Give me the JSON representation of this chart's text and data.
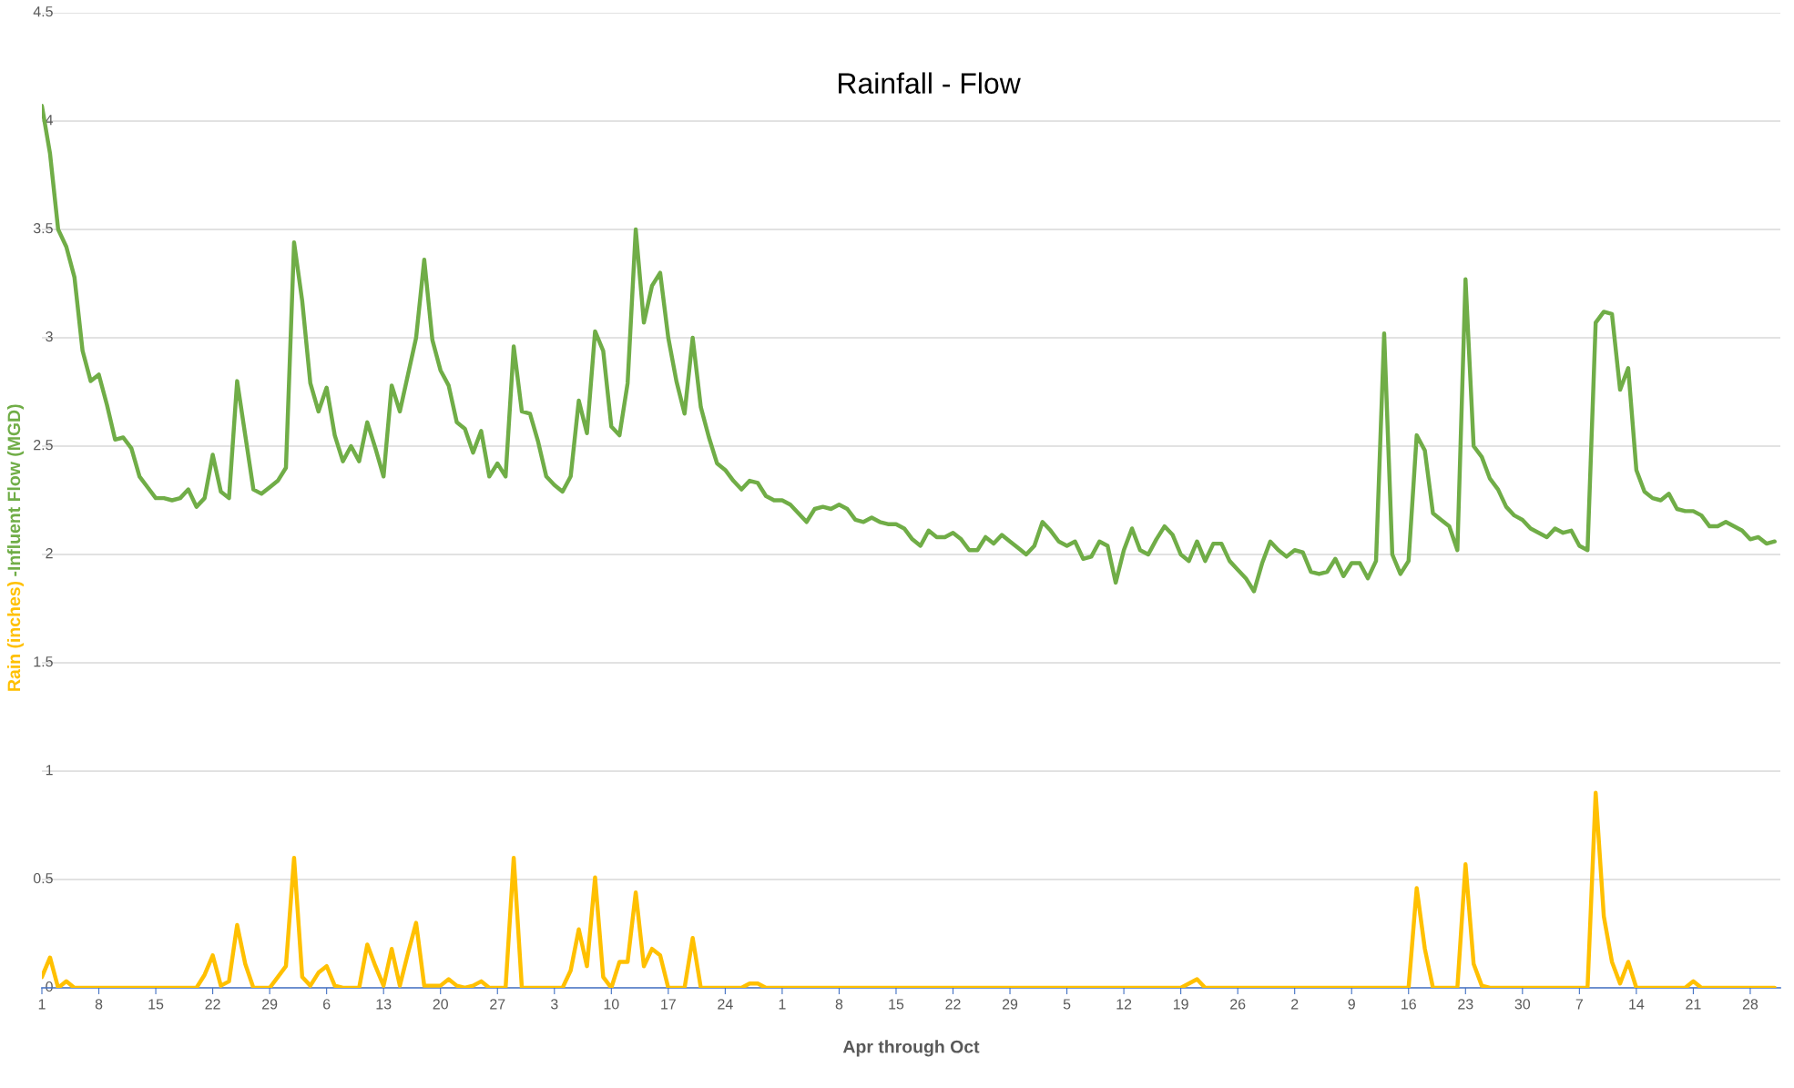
{
  "chart_data": {
    "type": "line",
    "title": "Rainfall - Flow",
    "xlabel": "Apr through Oct",
    "categories": [
      "1",
      null,
      null,
      null,
      null,
      null,
      null,
      "8",
      null,
      null,
      null,
      null,
      null,
      null,
      "15",
      null,
      null,
      null,
      null,
      null,
      null,
      "22",
      null,
      null,
      null,
      null,
      null,
      null,
      "29",
      null,
      null,
      null,
      null,
      null,
      null,
      "6",
      null,
      null,
      null,
      null,
      null,
      null,
      "13",
      null,
      null,
      null,
      null,
      null,
      null,
      "20",
      null,
      null,
      null,
      null,
      null,
      null,
      "27",
      null,
      null,
      null,
      null,
      null,
      null,
      "3",
      null,
      null,
      null,
      null,
      null,
      null,
      "10",
      null,
      null,
      null,
      null,
      null,
      null,
      "17",
      null,
      null,
      null,
      null,
      null,
      null,
      "24",
      null,
      null,
      null,
      null,
      null,
      null,
      "1",
      null,
      null,
      null,
      null,
      null,
      null,
      "8",
      null,
      null,
      null,
      null,
      null,
      null,
      "15",
      null,
      null,
      null,
      null,
      null,
      null,
      "22",
      null,
      null,
      null,
      null,
      null,
      null,
      "29",
      null,
      null,
      null,
      null,
      null,
      null,
      "5",
      null,
      null,
      null,
      null,
      null,
      null,
      "12",
      null,
      null,
      null,
      null,
      null,
      null,
      "19",
      null,
      null,
      null,
      null,
      null,
      null,
      "26",
      null,
      null,
      null,
      null,
      null,
      null,
      "2",
      null,
      null,
      null,
      null,
      null,
      null,
      "9",
      null,
      null,
      null,
      null,
      null,
      null,
      "16",
      null,
      null,
      null,
      null,
      null,
      null,
      "23",
      null,
      null,
      null,
      null,
      null,
      null,
      "30",
      null,
      null,
      null,
      null,
      null,
      null,
      "7",
      null,
      null,
      null,
      null,
      null,
      null,
      "14",
      null,
      null,
      null,
      null,
      null,
      null,
      "21",
      null,
      null,
      null,
      null,
      null,
      null,
      "28",
      null,
      null,
      null
    ],
    "series": [
      {
        "name": "Rain (inches)",
        "color": "#ffc000",
        "values": [
          0.05,
          0.14,
          0,
          0.03,
          0,
          0,
          0,
          0,
          0,
          0,
          0,
          0,
          0,
          0,
          0,
          0,
          0,
          0,
          0,
          0,
          0.06,
          0.15,
          0.01,
          0.03,
          0.29,
          0.11,
          0,
          0,
          0,
          0.05,
          0.1,
          0.6,
          0.05,
          0.01,
          0.07,
          0.1,
          0.01,
          0,
          0,
          0,
          0.2,
          0.1,
          0.01,
          0.18,
          0.01,
          0.16,
          0.3,
          0.01,
          0.01,
          0.01,
          0.04,
          0.01,
          0,
          0.01,
          0.03,
          0,
          0,
          0,
          0.6,
          0,
          0,
          0,
          0,
          0,
          0,
          0.08,
          0.27,
          0.1,
          0.51,
          0.05,
          0,
          0.12,
          0.12,
          0.44,
          0.1,
          0.18,
          0.15,
          0,
          0,
          0,
          0.23,
          0,
          0,
          0,
          0,
          0,
          0,
          0.02,
          0.02,
          0,
          0,
          0,
          0,
          0,
          0,
          0,
          0,
          0,
          0,
          0,
          0,
          0,
          0,
          0,
          0,
          0,
          0,
          0,
          0,
          0,
          0,
          0,
          0,
          0,
          0,
          0,
          0,
          0,
          0,
          0,
          0,
          0,
          0,
          0,
          0,
          0,
          0,
          0,
          0,
          0,
          0,
          0,
          0,
          0,
          0,
          0,
          0,
          0,
          0,
          0,
          0,
          0.02,
          0.04,
          0,
          0,
          0,
          0,
          0,
          0,
          0,
          0,
          0,
          0,
          0,
          0,
          0,
          0,
          0,
          0,
          0,
          0,
          0,
          0,
          0,
          0,
          0,
          0,
          0,
          0,
          0.46,
          0.18,
          0,
          0,
          0,
          0,
          0.57,
          0.11,
          0.01,
          0,
          0,
          0,
          0,
          0,
          0,
          0,
          0,
          0,
          0,
          0,
          0,
          0,
          0.9,
          0.33,
          0.12,
          0.02,
          0.12,
          0,
          0,
          0,
          0,
          0,
          0,
          0,
          0.03,
          0,
          0,
          0,
          0,
          0,
          0,
          0,
          0,
          0,
          0
        ]
      },
      {
        "name": "-Influent Flow (MGD)",
        "color": "#70ad47",
        "values": [
          4.07,
          3.85,
          3.5,
          3.42,
          3.28,
          2.94,
          2.8,
          2.83,
          2.69,
          2.53,
          2.54,
          2.49,
          2.36,
          2.31,
          2.26,
          2.26,
          2.25,
          2.26,
          2.3,
          2.22,
          2.26,
          2.46,
          2.29,
          2.26,
          2.8,
          2.55,
          2.3,
          2.28,
          2.31,
          2.34,
          2.4,
          3.44,
          3.17,
          2.79,
          2.66,
          2.77,
          2.55,
          2.43,
          2.5,
          2.43,
          2.61,
          2.49,
          2.36,
          2.78,
          2.66,
          2.83,
          3.0,
          3.36,
          2.99,
          2.85,
          2.78,
          2.61,
          2.58,
          2.47,
          2.57,
          2.36,
          2.42,
          2.36,
          2.96,
          2.66,
          2.65,
          2.52,
          2.36,
          2.32,
          2.29,
          2.36,
          2.71,
          2.56,
          3.03,
          2.94,
          2.59,
          2.55,
          2.79,
          3.5,
          3.07,
          3.24,
          3.3,
          3.0,
          2.8,
          2.65,
          3.0,
          2.68,
          2.54,
          2.42,
          2.39,
          2.34,
          2.3,
          2.34,
          2.33,
          2.27,
          2.25,
          2.25,
          2.23,
          2.19,
          2.15,
          2.21,
          2.22,
          2.21,
          2.23,
          2.21,
          2.16,
          2.15,
          2.17,
          2.15,
          2.14,
          2.14,
          2.12,
          2.07,
          2.04,
          2.11,
          2.08,
          2.08,
          2.1,
          2.07,
          2.02,
          2.02,
          2.08,
          2.05,
          2.09,
          2.06,
          2.03,
          2.0,
          2.04,
          2.15,
          2.11,
          2.06,
          2.04,
          2.06,
          1.98,
          1.99,
          2.06,
          2.04,
          1.87,
          2.02,
          2.12,
          2.02,
          2.0,
          2.07,
          2.13,
          2.09,
          2.0,
          1.97,
          2.06,
          1.97,
          2.05,
          2.05,
          1.97,
          1.93,
          1.89,
          1.83,
          1.96,
          2.06,
          2.02,
          1.99,
          2.02,
          2.01,
          1.92,
          1.91,
          1.92,
          1.98,
          1.9,
          1.96,
          1.96,
          1.89,
          1.97,
          3.02,
          2.0,
          1.91,
          1.97,
          2.55,
          2.48,
          2.19,
          2.16,
          2.13,
          2.02,
          3.27,
          2.5,
          2.45,
          2.35,
          2.3,
          2.22,
          2.18,
          2.16,
          2.12,
          2.1,
          2.08,
          2.12,
          2.1,
          2.11,
          2.04,
          2.02,
          3.07,
          3.12,
          3.11,
          2.76,
          2.86,
          2.39,
          2.29,
          2.26,
          2.25,
          2.28,
          2.21,
          2.2,
          2.2,
          2.18,
          2.13,
          2.13,
          2.15,
          2.13,
          2.11,
          2.07,
          2.08,
          2.05,
          2.06
        ]
      }
    ],
    "ylim": [
      0,
      4.5
    ],
    "yticks": [
      0,
      0.5,
      1,
      1.5,
      2,
      2.5,
      3,
      3.5,
      4,
      4.5
    ],
    "grid": "y"
  }
}
